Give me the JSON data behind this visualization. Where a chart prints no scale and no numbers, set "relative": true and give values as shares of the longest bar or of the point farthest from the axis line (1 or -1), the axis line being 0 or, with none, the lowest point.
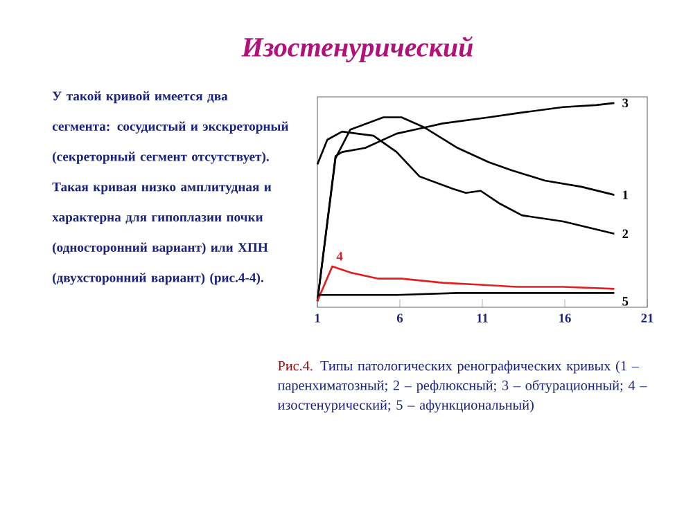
{
  "chart_data": {
    "type": "line",
    "title": "Изостенурический",
    "annotations": [
      "У такой кривой имеется два сегмента: сосудистый и экскреторный (секреторный сегмент отсутствует). Такая кривая низко амплитудная и характерна для гипоплазии почки (односторонний вариант) или ХПН (двухсторонний вариант) (рис.4-4).",
      "Рис.4.",
      "Типы патологических ренографических кривых (1 – паренхиматозный; 2 – рефлюксный;  3 – обтурационный; 4 – изостенурический; 5 – афункциональный)"
    ],
    "relative": true,
    "xlim": [
      1,
      21
    ],
    "xticks": [
      1,
      6,
      11,
      16,
      21
    ],
    "grid": false,
    "legend": false,
    "marker": "none",
    "line_style": "solid",
    "series": [
      {
        "name": "1",
        "color": "#000000",
        "x": [
          1,
          2.1,
          3.0,
          5.0,
          6.1,
          7.5,
          9.5,
          11.4,
          12.8,
          14.8,
          17.0,
          19.0
        ],
        "values": [
          0.03,
          0.73,
          0.87,
          0.93,
          0.93,
          0.88,
          0.78,
          0.71,
          0.67,
          0.62,
          0.59,
          0.55
        ]
      },
      {
        "name": "2",
        "color": "#000000",
        "x": [
          1,
          1.6,
          2.5,
          4.4,
          5.8,
          7.2,
          9.2,
          10.0,
          10.9,
          12.0,
          13.4,
          15.9,
          19.0
        ],
        "values": [
          0.7,
          0.82,
          0.86,
          0.84,
          0.76,
          0.64,
          0.58,
          0.56,
          0.57,
          0.51,
          0.45,
          0.42,
          0.36
        ]
      },
      {
        "name": "3",
        "color": "#000000",
        "x": [
          1,
          2.1,
          2.5,
          3.9,
          5.8,
          7.5,
          8.6,
          11.4,
          13.1,
          15.9,
          17.9,
          19.0
        ],
        "values": [
          0.03,
          0.74,
          0.76,
          0.78,
          0.85,
          0.88,
          0.9,
          0.93,
          0.95,
          0.98,
          0.99,
          1
        ]
      },
      {
        "name": "4",
        "color": "#e02020",
        "x": [
          1,
          1.9,
          3.0,
          4.7,
          6.1,
          8.6,
          10.9,
          13.1,
          15.9,
          19.0
        ],
        "values": [
          0.03,
          0.2,
          0.17,
          0.14,
          0.14,
          0.12,
          0.11,
          0.1,
          0.1,
          0.09
        ]
      },
      {
        "name": "5",
        "color": "#000000",
        "x": [
          1,
          3.0,
          5.8,
          9.5,
          12.8,
          19.0
        ],
        "values": [
          0.06,
          0.06,
          0.06,
          0.07,
          0.07,
          0.07
        ]
      }
    ]
  }
}
